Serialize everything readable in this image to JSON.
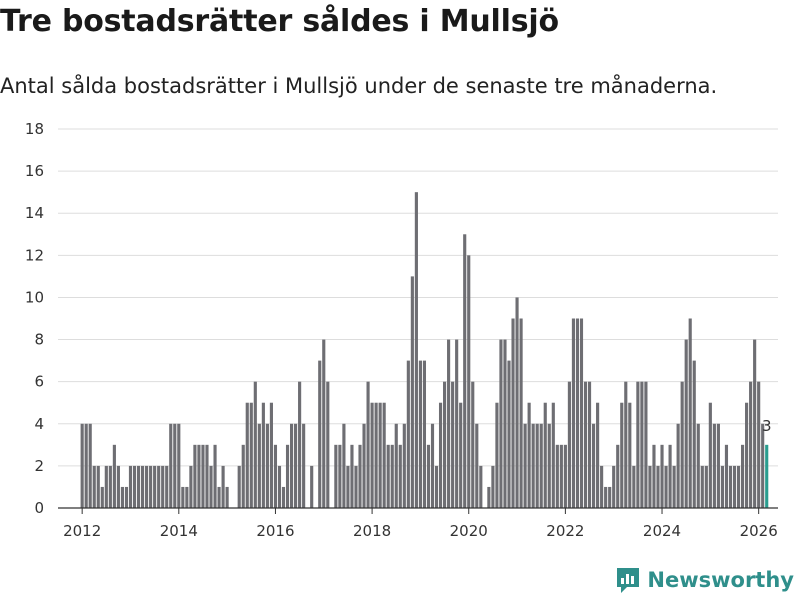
{
  "title": "Tre bostadsrätter såldes i Mullsjö",
  "subtitle": "Antal sålda bostadsrätter i Mullsjö under de senaste tre månaderna.",
  "brand": "Newsworthy",
  "colors": {
    "bar": "#6e6e73",
    "highlight": "#2a9d8f",
    "grid": "#dddddd",
    "brand": "#2f8f8b"
  },
  "chart_data": {
    "type": "bar",
    "title": "Tre bostadsrätter såldes i Mullsjö",
    "xlabel": "",
    "ylabel": "",
    "ylim": [
      0,
      18
    ],
    "y_ticks": [
      0,
      2,
      4,
      6,
      8,
      10,
      12,
      14,
      16,
      18
    ],
    "x_range": [
      2011.5,
      2026.4
    ],
    "x_ticks": [
      2012,
      2014,
      2016,
      2018,
      2020,
      2022,
      2024,
      2026
    ],
    "start": "2012-01",
    "grid": true,
    "highlight_label": "3",
    "values": [
      4,
      4,
      4,
      2,
      2,
      1,
      2,
      2,
      3,
      2,
      1,
      1,
      2,
      2,
      2,
      2,
      2,
      2,
      2,
      2,
      2,
      2,
      4,
      4,
      4,
      1,
      1,
      2,
      3,
      3,
      3,
      3,
      2,
      3,
      1,
      2,
      1,
      0,
      0,
      2,
      3,
      5,
      5,
      6,
      4,
      5,
      4,
      5,
      3,
      2,
      1,
      3,
      4,
      4,
      6,
      4,
      0,
      2,
      0,
      7,
      8,
      6,
      0,
      3,
      3,
      4,
      2,
      3,
      2,
      3,
      4,
      6,
      5,
      5,
      5,
      5,
      3,
      3,
      4,
      3,
      4,
      7,
      11,
      15,
      7,
      7,
      3,
      4,
      2,
      5,
      6,
      8,
      6,
      8,
      5,
      13,
      12,
      6,
      4,
      2,
      0,
      1,
      2,
      5,
      8,
      8,
      7,
      9,
      10,
      9,
      4,
      5,
      4,
      4,
      4,
      5,
      4,
      5,
      3,
      3,
      3,
      6,
      9,
      9,
      9,
      6,
      6,
      4,
      5,
      2,
      1,
      1,
      2,
      3,
      5,
      6,
      5,
      2,
      6,
      6,
      6,
      2,
      3,
      2,
      3,
      2,
      3,
      2,
      4,
      6,
      8,
      9,
      7,
      4,
      2,
      2,
      5,
      4,
      4,
      2,
      3,
      2,
      2,
      2,
      3,
      5,
      6,
      8,
      6,
      4,
      3
    ]
  }
}
